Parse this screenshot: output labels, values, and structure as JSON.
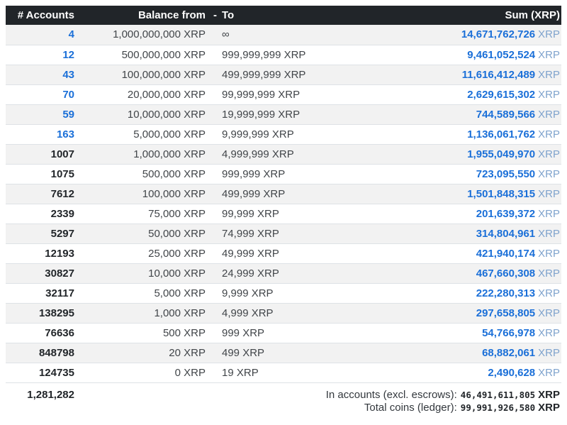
{
  "table": {
    "headers": {
      "accounts": "# Accounts",
      "balance_from": "Balance from",
      "dash": "-",
      "to": "To",
      "sum": "Sum (XRP)"
    },
    "rows": [
      {
        "accounts": "4",
        "from": "1,000,000,000 XRP",
        "to": "∞",
        "sum": "14,671,762,726",
        "link": true
      },
      {
        "accounts": "12",
        "from": "500,000,000 XRP",
        "to": "999,999,999 XRP",
        "sum": "9,461,052,524",
        "link": true
      },
      {
        "accounts": "43",
        "from": "100,000,000 XRP",
        "to": "499,999,999 XRP",
        "sum": "11,616,412,489",
        "link": true
      },
      {
        "accounts": "70",
        "from": "20,000,000 XRP",
        "to": "99,999,999 XRP",
        "sum": "2,629,615,302",
        "link": true
      },
      {
        "accounts": "59",
        "from": "10,000,000 XRP",
        "to": "19,999,999 XRP",
        "sum": "744,589,566",
        "link": true
      },
      {
        "accounts": "163",
        "from": "5,000,000 XRP",
        "to": "9,999,999 XRP",
        "sum": "1,136,061,762",
        "link": true
      },
      {
        "accounts": "1007",
        "from": "1,000,000 XRP",
        "to": "4,999,999 XRP",
        "sum": "1,955,049,970",
        "link": false
      },
      {
        "accounts": "1075",
        "from": "500,000 XRP",
        "to": "999,999 XRP",
        "sum": "723,095,550",
        "link": false
      },
      {
        "accounts": "7612",
        "from": "100,000 XRP",
        "to": "499,999 XRP",
        "sum": "1,501,848,315",
        "link": false
      },
      {
        "accounts": "2339",
        "from": "75,000 XRP",
        "to": "99,999 XRP",
        "sum": "201,639,372",
        "link": false
      },
      {
        "accounts": "5297",
        "from": "50,000 XRP",
        "to": "74,999 XRP",
        "sum": "314,804,961",
        "link": false
      },
      {
        "accounts": "12193",
        "from": "25,000 XRP",
        "to": "49,999 XRP",
        "sum": "421,940,174",
        "link": false
      },
      {
        "accounts": "30827",
        "from": "10,000 XRP",
        "to": "24,999 XRP",
        "sum": "467,660,308",
        "link": false
      },
      {
        "accounts": "32117",
        "from": "5,000 XRP",
        "to": "9,999 XRP",
        "sum": "222,280,313",
        "link": false
      },
      {
        "accounts": "138295",
        "from": "1,000 XRP",
        "to": "4,999 XRP",
        "sum": "297,658,805",
        "link": false
      },
      {
        "accounts": "76636",
        "from": "500 XRP",
        "to": "999 XRP",
        "sum": "54,766,978",
        "link": false
      },
      {
        "accounts": "848798",
        "from": "20 XRP",
        "to": "499 XRP",
        "sum": "68,882,061",
        "link": false
      },
      {
        "accounts": "124735",
        "from": "0 XRP",
        "to": "19 XRP",
        "sum": "2,490,628",
        "link": false
      }
    ],
    "sum_unit": "XRP",
    "total_accounts": "1,281,282"
  },
  "footer": {
    "in_accounts_label": "In accounts (excl. escrows):",
    "in_accounts_value": "46,491,611,805",
    "total_coins_label": "Total coins (ledger):",
    "total_coins_value": "99,991,926,580",
    "unit": "XRP"
  },
  "colors": {
    "header_bg": "#212529",
    "header_text": "#ffffff",
    "link_blue": "#1a6fd8",
    "sum_unit_blue": "#7fa3cd",
    "stripe": "#f2f2f2",
    "border": "#dee2e6"
  }
}
